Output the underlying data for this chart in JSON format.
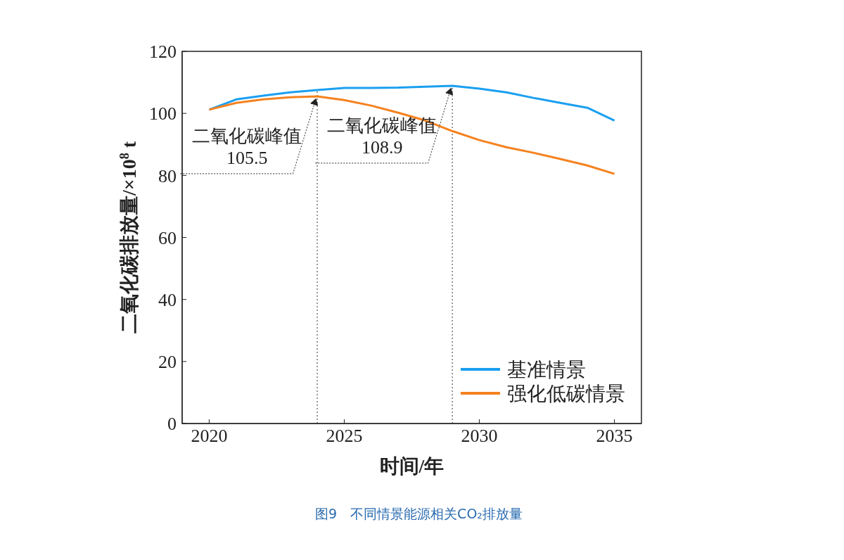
{
  "chart_data": {
    "type": "line",
    "xlabel": "时间/年",
    "ylabel": "二氧化碳排放量/×10$^{8}$ t",
    "x": [
      2020,
      2021,
      2022,
      2023,
      2024,
      2025,
      2026,
      2027,
      2028,
      2029,
      2030,
      2031,
      2032,
      2033,
      2034,
      2035
    ],
    "series": [
      {
        "name": "基准情景",
        "color": "#1a9ff0",
        "values": [
          101.2,
          104.5,
          105.7,
          106.8,
          107.5,
          108.2,
          108.2,
          108.3,
          108.6,
          108.9,
          108.0,
          106.8,
          105.0,
          103.4,
          101.8,
          97.7
        ]
      },
      {
        "name": "强化低碳情景",
        "color": "#f5821f",
        "values": [
          101.2,
          103.4,
          104.5,
          105.2,
          105.5,
          104.3,
          102.5,
          100.2,
          97.7,
          94.3,
          91.4,
          89.1,
          87.3,
          85.3,
          83.2,
          80.5
        ]
      }
    ],
    "xlim": [
      2019,
      2036
    ],
    "xticks": [
      2020,
      2025,
      2030,
      2035
    ],
    "ylim": [
      0,
      120
    ],
    "yticks": [
      0,
      20,
      40,
      60,
      80,
      100,
      120
    ],
    "ref_lines": [
      {
        "axis": "x",
        "value": 2024,
        "line_style": "dotted",
        "color": "#555555"
      },
      {
        "axis": "x",
        "value": 2029,
        "line_style": "dotted",
        "color": "#555555"
      }
    ],
    "grid": false,
    "legend": "bottom right",
    "marker": "none",
    "line_style": "solid",
    "annotations": [
      {
        "text": "二氧化碳峰值\n105.5",
        "x": 2024,
        "y": 105.5
      },
      {
        "text": "二氧化碳峰值\n108.9",
        "x": 2029,
        "y": 108.9
      },
      "图9　不同情景能源相关CO₂排放量"
    ]
  }
}
